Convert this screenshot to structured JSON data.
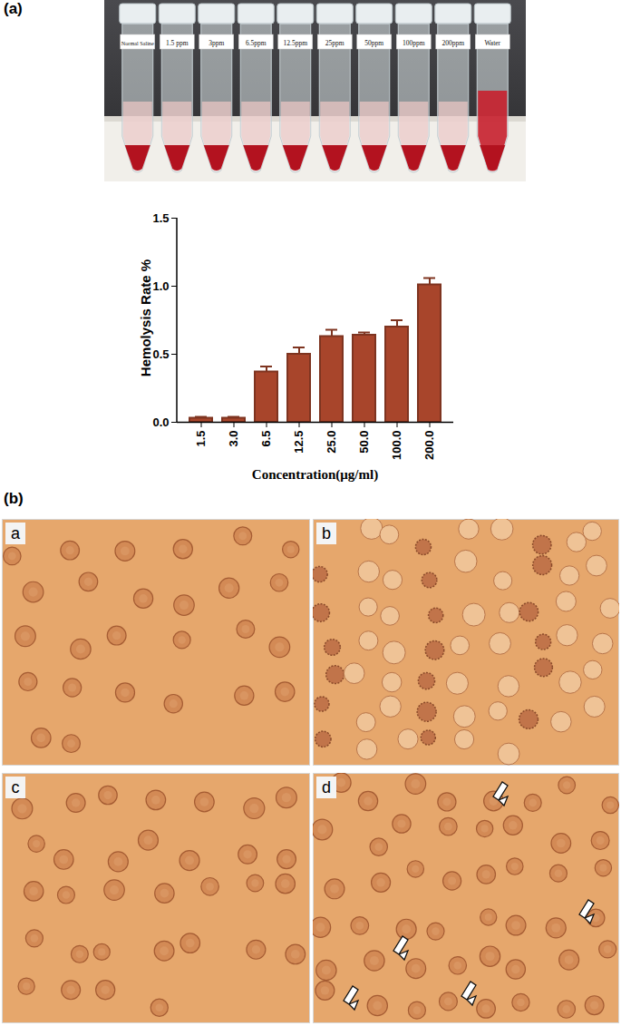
{
  "chart_data": {
    "type": "bar",
    "categories": [
      "1.5",
      "3.0",
      "6.5",
      "12.5",
      "25.0",
      "50.0",
      "100.0",
      "200.0"
    ],
    "values": [
      0.03,
      0.03,
      0.37,
      0.5,
      0.63,
      0.64,
      0.7,
      1.01
    ],
    "errors": [
      0.01,
      0.01,
      0.04,
      0.05,
      0.05,
      0.02,
      0.05,
      0.05
    ],
    "color": "#a8452b",
    "x_label": "Concentration(μg/ml)",
    "y_label": "Hemolysis Rate %",
    "ylim": [
      0,
      1.5
    ],
    "yticks": [
      {
        "value": 0,
        "label": "0.0"
      },
      0.5,
      {
        "value": 1,
        "label": "1.0"
      },
      1.5
    ],
    "grid": false
  },
  "panels": {
    "a": "(a)",
    "b": "(b)"
  },
  "tube_labels": [
    "Normal Saline",
    "1.5 ppm",
    "3ppm",
    "6.5ppm",
    "12.5ppm",
    "25ppm",
    "50ppm",
    "100ppm",
    "200ppm",
    "Water"
  ],
  "micrograph_labels": [
    "a",
    "b",
    "c",
    "d"
  ]
}
